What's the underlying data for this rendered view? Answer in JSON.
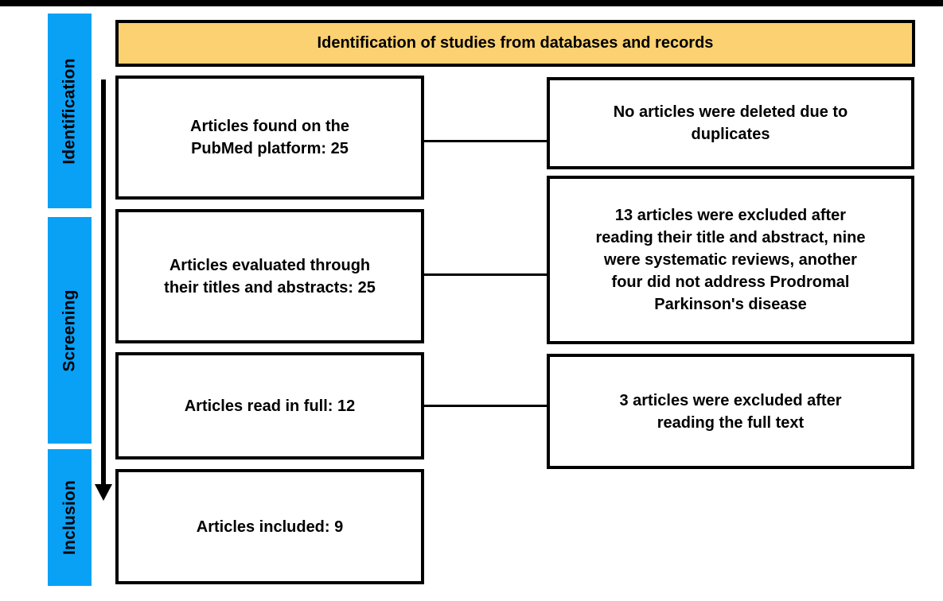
{
  "diagram": {
    "title": "Identification of studies from databases and records",
    "stages": [
      {
        "label": "Identification"
      },
      {
        "label": "Screening"
      },
      {
        "label": "Inclusion"
      }
    ],
    "flow_boxes": [
      {
        "text": "Articles found on the\nPubMed platform: 25"
      },
      {
        "text": "Articles evaluated through\ntheir titles and abstracts: 25"
      },
      {
        "text": "Articles read in full: 12"
      },
      {
        "text": "Articles included: 9"
      }
    ],
    "exclusion_boxes": [
      {
        "text": "No articles were deleted due to\nduplicates"
      },
      {
        "text": "13 articles were excluded after\nreading their title and abstract, nine\nwere systematic reviews, another\nfour did not address Prodromal\nParkinson's disease"
      },
      {
        "text": "3 articles were excluded after\nreading the full text"
      }
    ],
    "colors": {
      "stage_bar": "#09A1F6",
      "header_fill": "#FBD171",
      "line": "#000000"
    }
  }
}
